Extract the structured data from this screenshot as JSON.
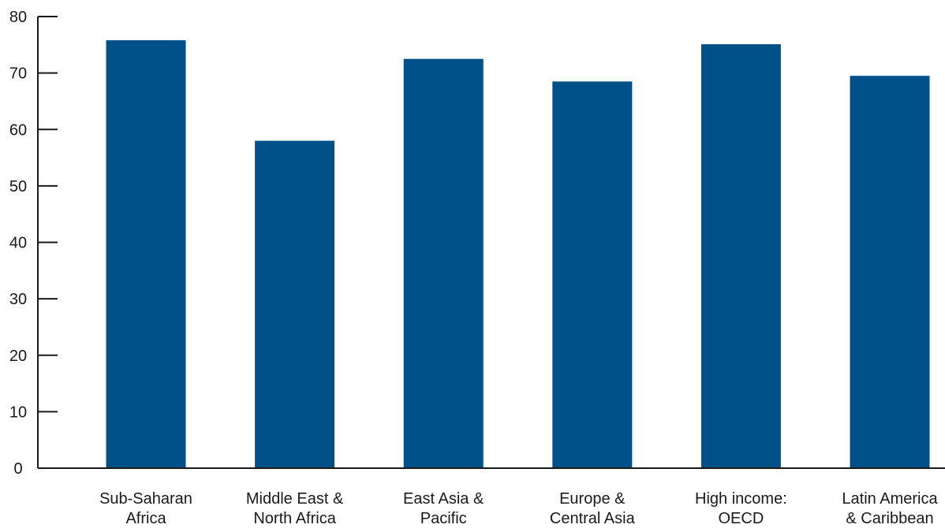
{
  "chart_data": {
    "type": "bar",
    "title": "",
    "xlabel": "",
    "ylabel": "",
    "categories": [
      [
        "Sub-Saharan",
        "Africa"
      ],
      [
        "Middle East &",
        "North Africa"
      ],
      [
        "East Asia &",
        "Pacific"
      ],
      [
        "Europe &",
        "Central Asia"
      ],
      [
        "High income:",
        "OECD"
      ],
      [
        "Latin America",
        "& Caribbean"
      ]
    ],
    "values": [
      75.8,
      58.0,
      72.5,
      68.5,
      75.1,
      69.5
    ],
    "ylim": [
      0,
      80
    ],
    "yticks": [
      0,
      10,
      20,
      30,
      40,
      50,
      60,
      70,
      80
    ],
    "grid": false,
    "bar_color": "#00508a",
    "axis_color": "#1a1a1a"
  }
}
